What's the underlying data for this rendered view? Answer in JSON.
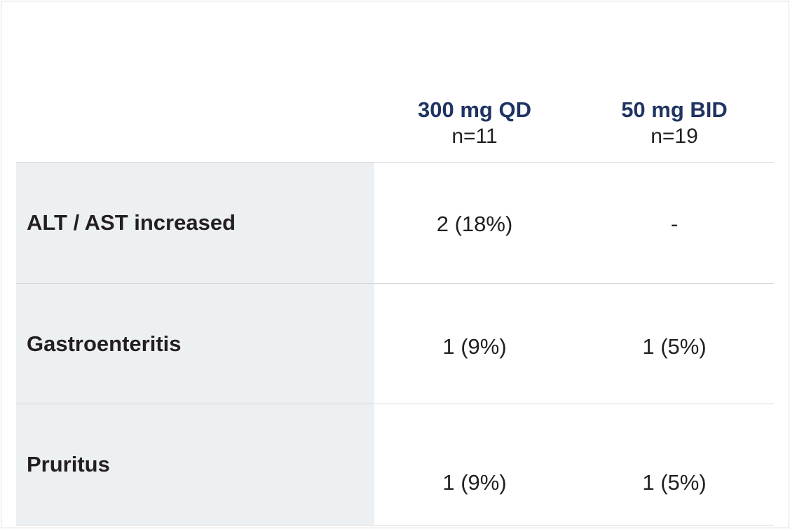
{
  "columns": [
    {
      "title": "300 mg QD",
      "n": "n=11"
    },
    {
      "title": "50 mg BID",
      "n": "n=19"
    }
  ],
  "colors": {
    "header": "#1f3461",
    "label_bg": "#edf0f3"
  },
  "rows": [
    {
      "label": "ALT / AST increased",
      "values": [
        "2 (18%)",
        "-"
      ]
    },
    {
      "label": "Gastroenteritis",
      "values": [
        "1 (9%)",
        "1 (5%)"
      ]
    },
    {
      "label": "Pruritus",
      "values": [
        "1 (9%)",
        "1 (5%)"
      ]
    }
  ]
}
